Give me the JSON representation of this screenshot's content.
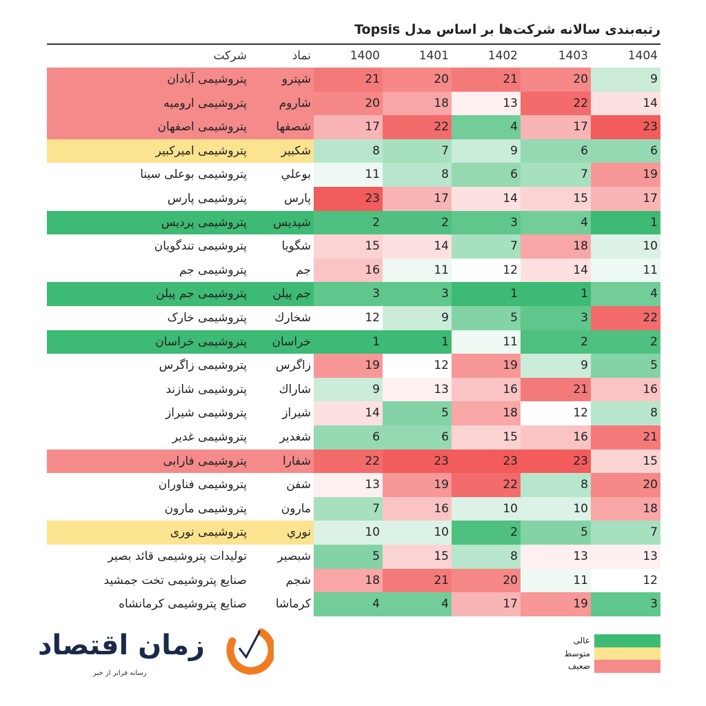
{
  "title": "رتبه‌بندی سالانه شرکت‌ها بر اساس مدل Topsis",
  "headers": {
    "company": "شرکت",
    "symbol": "نماد",
    "years": [
      "1400",
      "1401",
      "1402",
      "1403",
      "1404"
    ]
  },
  "colors": {
    "high": "#3dba73",
    "medium": "#fbe38f",
    "low": "#f58a8a",
    "best_cell": "#3dba73",
    "mid_cell": "#ffffff",
    "worst_cell": "#f25c5c"
  },
  "legend": [
    {
      "label": "عالی",
      "level": "high"
    },
    {
      "label": "متوسط",
      "level": "medium"
    },
    {
      "label": "ضعیف",
      "level": "low"
    }
  ],
  "logo": {
    "name": "زمان اقتصاد",
    "tagline": "رسانه فراتر از خبر"
  },
  "chart_data": {
    "type": "heatmap",
    "title": "رتبه‌بندی سالانه شرکت‌ها بر اساس مدل Topsis",
    "columns": [
      "1400",
      "1401",
      "1402",
      "1403",
      "1404"
    ],
    "value_range": [
      1,
      23
    ],
    "rows": [
      {
        "company": "پتروشیمی آبادان",
        "symbol": "شپترو",
        "values": [
          21,
          20,
          21,
          20,
          9
        ],
        "rating": "low"
      },
      {
        "company": "پتروشیمی ارومیه",
        "symbol": "شاروم",
        "values": [
          20,
          18,
          13,
          22,
          14
        ],
        "rating": "low"
      },
      {
        "company": "پتروشیمی اصفهان",
        "symbol": "شصفها",
        "values": [
          17,
          22,
          4,
          17,
          23
        ],
        "rating": "low"
      },
      {
        "company": "پتروشیمی امیرکبیر",
        "symbol": "شکبیر",
        "values": [
          8,
          7,
          9,
          6,
          6
        ],
        "rating": "medium"
      },
      {
        "company": "پتروشیمی بوعلی سینا",
        "symbol": "بوعلي",
        "values": [
          11,
          8,
          6,
          7,
          19
        ],
        "rating": null
      },
      {
        "company": "پتروشیمی پارس",
        "symbol": "پارس",
        "values": [
          23,
          17,
          14,
          15,
          17
        ],
        "rating": null
      },
      {
        "company": "پتروشیمی پردیس",
        "symbol": "شپدیس",
        "values": [
          2,
          2,
          3,
          4,
          1
        ],
        "rating": "high"
      },
      {
        "company": "پتروشیمی تندگویان",
        "symbol": "شگویا",
        "values": [
          15,
          14,
          7,
          18,
          10
        ],
        "rating": null
      },
      {
        "company": "پتروشیمی جم",
        "symbol": "جم",
        "values": [
          16,
          11,
          12,
          14,
          11
        ],
        "rating": null
      },
      {
        "company": "پتروشیمی جم پیلن",
        "symbol": "جم پیلن",
        "values": [
          3,
          3,
          1,
          1,
          4
        ],
        "rating": "high"
      },
      {
        "company": "پتروشیمی خارک",
        "symbol": "شخارك",
        "values": [
          12,
          9,
          5,
          3,
          22
        ],
        "rating": null
      },
      {
        "company": "پتروشیمی خراسان",
        "symbol": "خراسان",
        "values": [
          1,
          1,
          11,
          2,
          2
        ],
        "rating": "high"
      },
      {
        "company": "پتروشیمی زاگرس",
        "symbol": "زاگرس",
        "values": [
          19,
          12,
          19,
          9,
          5
        ],
        "rating": null
      },
      {
        "company": "پتروشیمی شازند",
        "symbol": "شاراك",
        "values": [
          9,
          13,
          16,
          21,
          16
        ],
        "rating": null
      },
      {
        "company": "پتروشیمی شیراز",
        "symbol": "شیراز",
        "values": [
          14,
          5,
          18,
          12,
          8
        ],
        "rating": null
      },
      {
        "company": "پتروشیمی غدیر",
        "symbol": "شغدیر",
        "values": [
          6,
          6,
          15,
          16,
          21
        ],
        "rating": null
      },
      {
        "company": "پتروشیمی فارابی",
        "symbol": "شفارا",
        "values": [
          22,
          23,
          23,
          23,
          15
        ],
        "rating": "low"
      },
      {
        "company": "پتروشیمی فناوران",
        "symbol": "شفن",
        "values": [
          13,
          19,
          22,
          8,
          20
        ],
        "rating": null
      },
      {
        "company": "پتروشیمی مارون",
        "symbol": "مارون",
        "values": [
          7,
          16,
          10,
          10,
          18
        ],
        "rating": null
      },
      {
        "company": "پتروشیمی نوری",
        "symbol": "نوري",
        "values": [
          10,
          10,
          2,
          5,
          7
        ],
        "rating": "medium"
      },
      {
        "company": "تولیدات پتروشیمی قائد بصیر",
        "symbol": "شبصیر",
        "values": [
          5,
          15,
          8,
          13,
          13
        ],
        "rating": null
      },
      {
        "company": "صنایع پتروشیمی تخت جمشید",
        "symbol": "شجم",
        "values": [
          18,
          21,
          20,
          11,
          12
        ],
        "rating": null
      },
      {
        "company": "صنایع پتروشیمی کرمانشاه",
        "symbol": "کرماشا",
        "values": [
          4,
          4,
          17,
          19,
          3
        ],
        "rating": null
      }
    ]
  }
}
